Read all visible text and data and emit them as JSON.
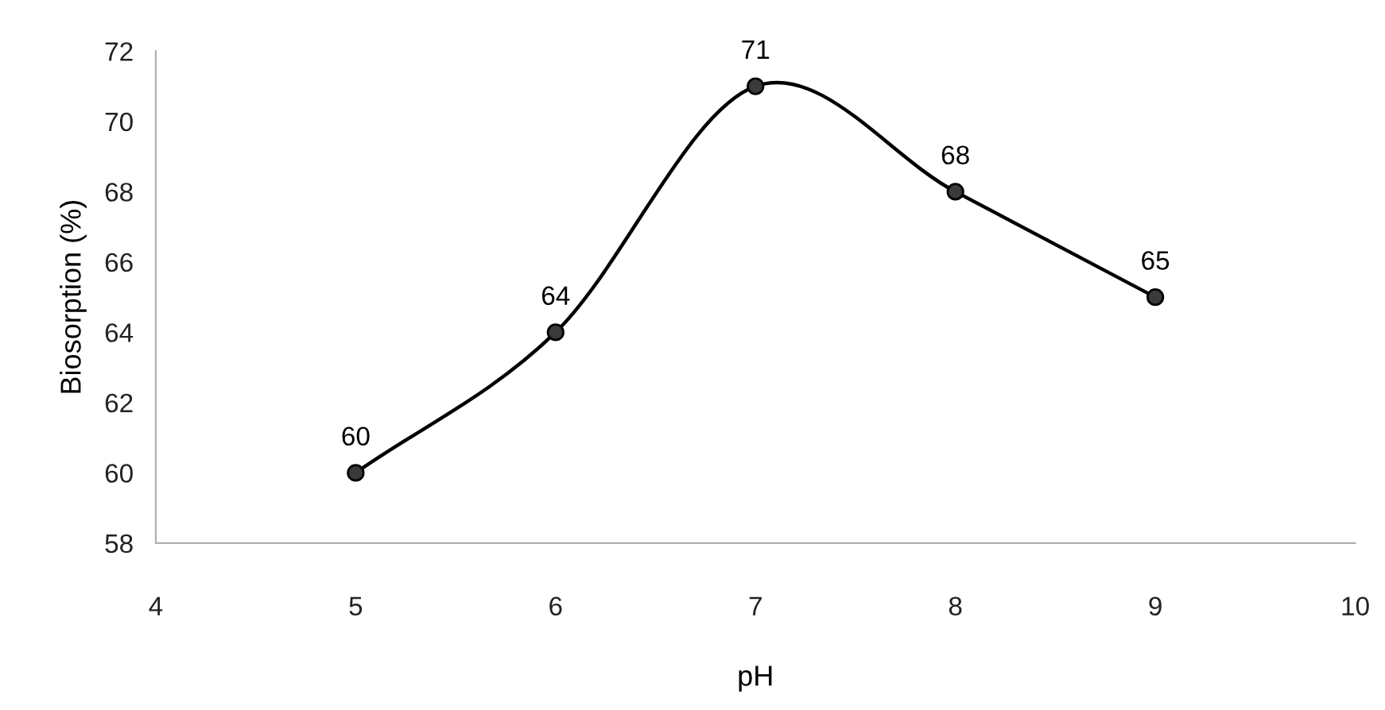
{
  "chart_data": {
    "type": "line",
    "xlabel": "pH",
    "ylabel": "Biosorption (%)",
    "x": [
      5,
      6,
      7,
      8,
      9
    ],
    "series": [
      {
        "color": "#3a3a3a",
        "values": [
          60,
          64,
          71,
          68,
          65
        ]
      }
    ],
    "xlim": [
      4,
      10
    ],
    "xticks": [
      4,
      5,
      6,
      7,
      8,
      9,
      10
    ],
    "ylim": [
      58,
      72
    ],
    "yticks": [
      58,
      60,
      62,
      64,
      66,
      68,
      70,
      72
    ],
    "marker": "circle",
    "line_style": "solid",
    "grid": false,
    "legend": false,
    "data_labels": true
  }
}
